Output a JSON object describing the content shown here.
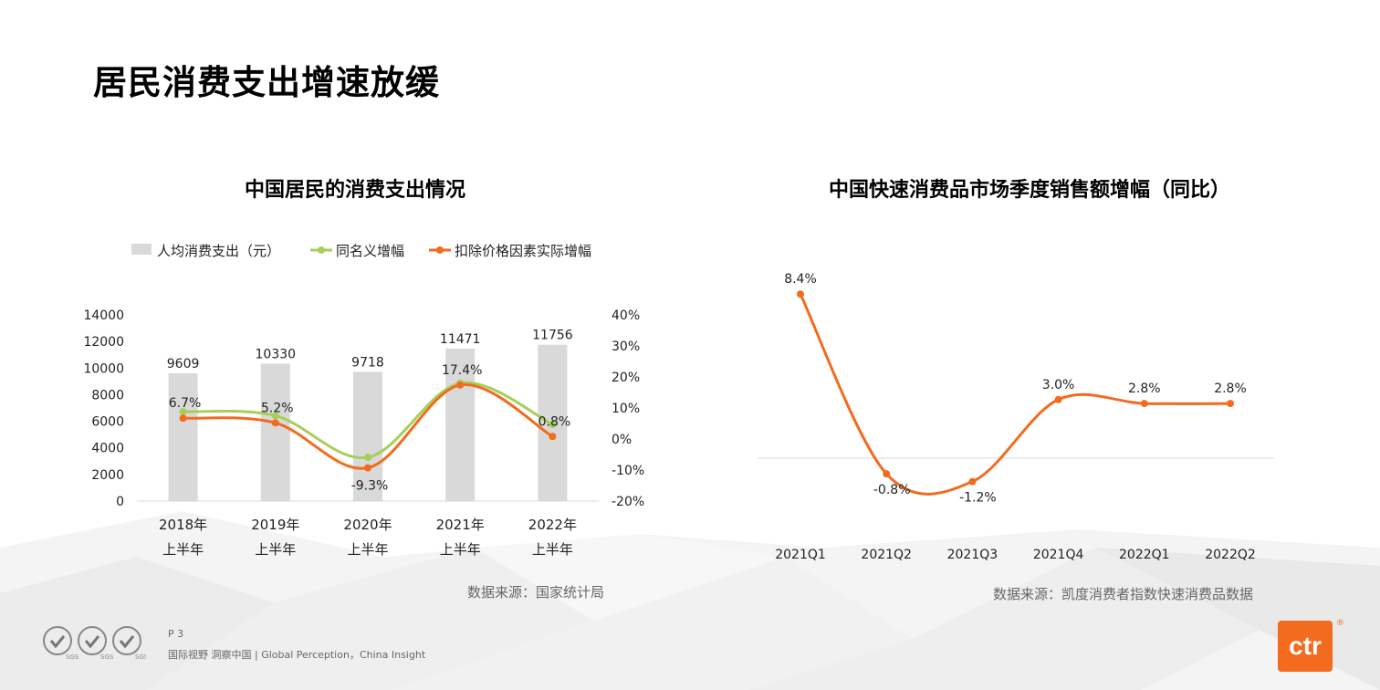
{
  "page": {
    "title": "居民消费支出增速放缓",
    "page_number": "P 3",
    "slogan": "国际视野  洞察中国 |  Global Perception，China Insight",
    "logo_text": "ctr",
    "logo_mark": "®",
    "certification_text": "SGS"
  },
  "colors": {
    "bar": "#d9d9d9",
    "green": "#a6cf5a",
    "orange": "#f26b1f",
    "axis": "#d9d9d9"
  },
  "chart_data": [
    {
      "type": "bar",
      "title": "中国居民的消费支出情况",
      "categories": [
        [
          "2018年",
          "上半年"
        ],
        [
          "2019年",
          "上半年"
        ],
        [
          "2020年",
          "上半年"
        ],
        [
          "2021年",
          "上半年"
        ],
        [
          "2022年",
          "上半年"
        ]
      ],
      "legend": [
        {
          "name": "人均消费支出（元）",
          "kind": "bar"
        },
        {
          "name": "同名义增幅",
          "kind": "line"
        },
        {
          "name": "扣除价格因素实际增幅",
          "kind": "line"
        }
      ],
      "legend_position": "top",
      "y_left": {
        "min": 0,
        "max": 14000,
        "step": 2000,
        "ticks": [
          "0",
          "2000",
          "4000",
          "6000",
          "8000",
          "10000",
          "12000",
          "14000"
        ]
      },
      "y_right": {
        "min": -20,
        "max": 40,
        "step": 10,
        "ticks": [
          "-20%",
          "-10%",
          "0%",
          "10%",
          "20%",
          "30%",
          "40%"
        ]
      },
      "bars": {
        "name": "人均消费支出（元）",
        "values": [
          9609,
          10330,
          9718,
          11471,
          11756
        ],
        "labels": [
          "9609",
          "10330",
          "9718",
          "11471",
          "11756"
        ]
      },
      "series": [
        {
          "name": "同名义增幅",
          "axis": "right",
          "values": [
            8.8,
            7.5,
            -5.9,
            18.0,
            4.7
          ],
          "labels": []
        },
        {
          "name": "扣除价格因素实际增幅",
          "axis": "right",
          "values": [
            6.7,
            5.2,
            -9.3,
            17.4,
            0.8
          ],
          "labels": [
            "6.7%",
            "5.2%",
            "-9.3%",
            "17.4%",
            "0.8%"
          ]
        }
      ],
      "source": "数据来源：国家统计局"
    },
    {
      "type": "line",
      "title": "中国快速消费品市场季度销售额增幅（同比）",
      "categories": [
        "2021Q1",
        "2021Q2",
        "2021Q3",
        "2021Q4",
        "2022Q1",
        "2022Q2"
      ],
      "series": [
        {
          "name": "",
          "values": [
            8.4,
            -0.8,
            -1.2,
            3.0,
            2.8,
            2.8
          ],
          "labels": [
            "8.4%",
            "-0.8%",
            "-1.2%",
            "3.0%",
            "2.8%",
            "2.8%"
          ]
        }
      ],
      "y_axis_visible": false,
      "grid": false,
      "source": "数据来源：凯度消费者指数快速消费品数据"
    }
  ]
}
